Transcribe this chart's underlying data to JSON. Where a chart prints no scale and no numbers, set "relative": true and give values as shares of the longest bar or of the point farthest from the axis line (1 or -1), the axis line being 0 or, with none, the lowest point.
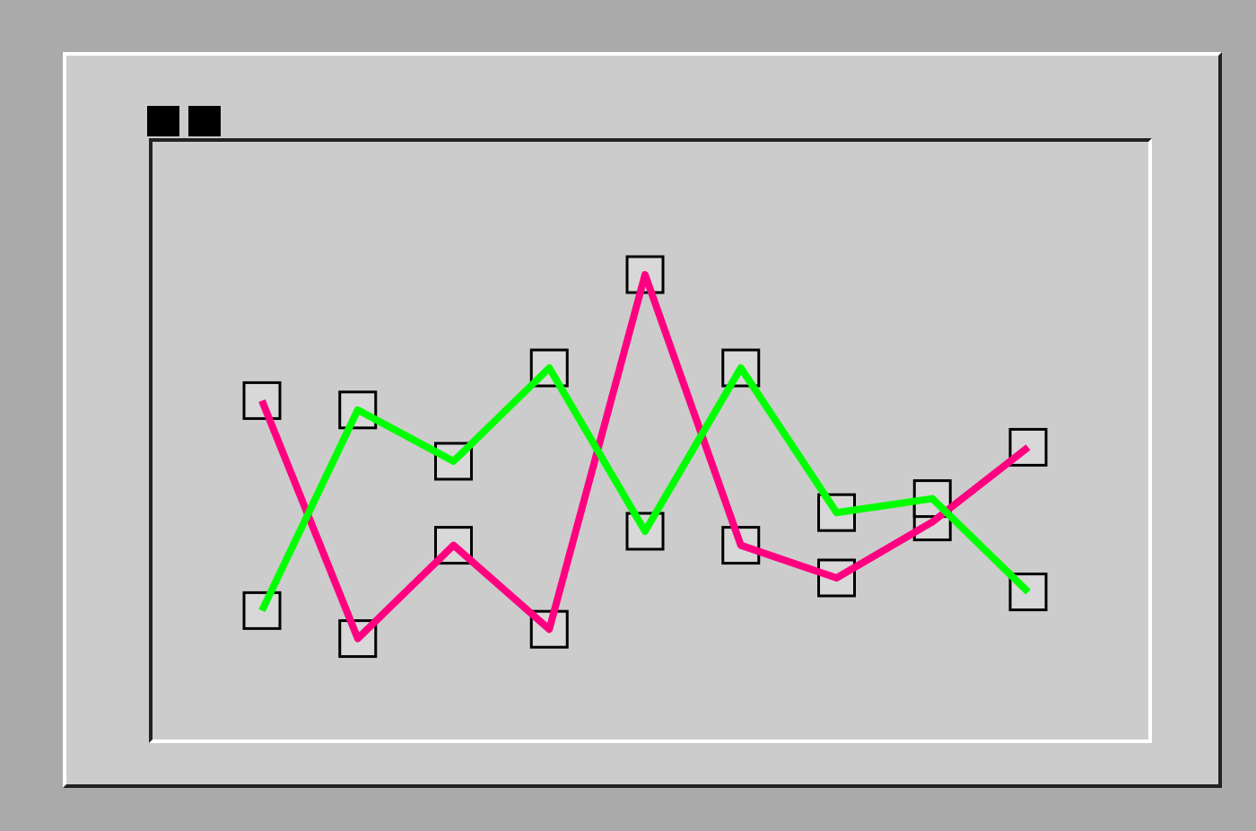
{
  "chart_data": {
    "type": "line",
    "relative": true,
    "marker": "square",
    "categories": [
      null,
      null,
      null,
      null,
      null,
      null,
      null,
      null,
      null
    ],
    "series": [
      {
        "color": "#ff0080",
        "values": [
          0.73,
          0.22,
          0.42,
          0.24,
          1,
          0.42,
          0.35,
          0.47,
          0.63
        ]
      },
      {
        "color": "#00ff00",
        "values": [
          0.28,
          0.71,
          0.6,
          0.8,
          0.45,
          0.8,
          0.49,
          0.52,
          0.32
        ]
      }
    ]
  }
}
